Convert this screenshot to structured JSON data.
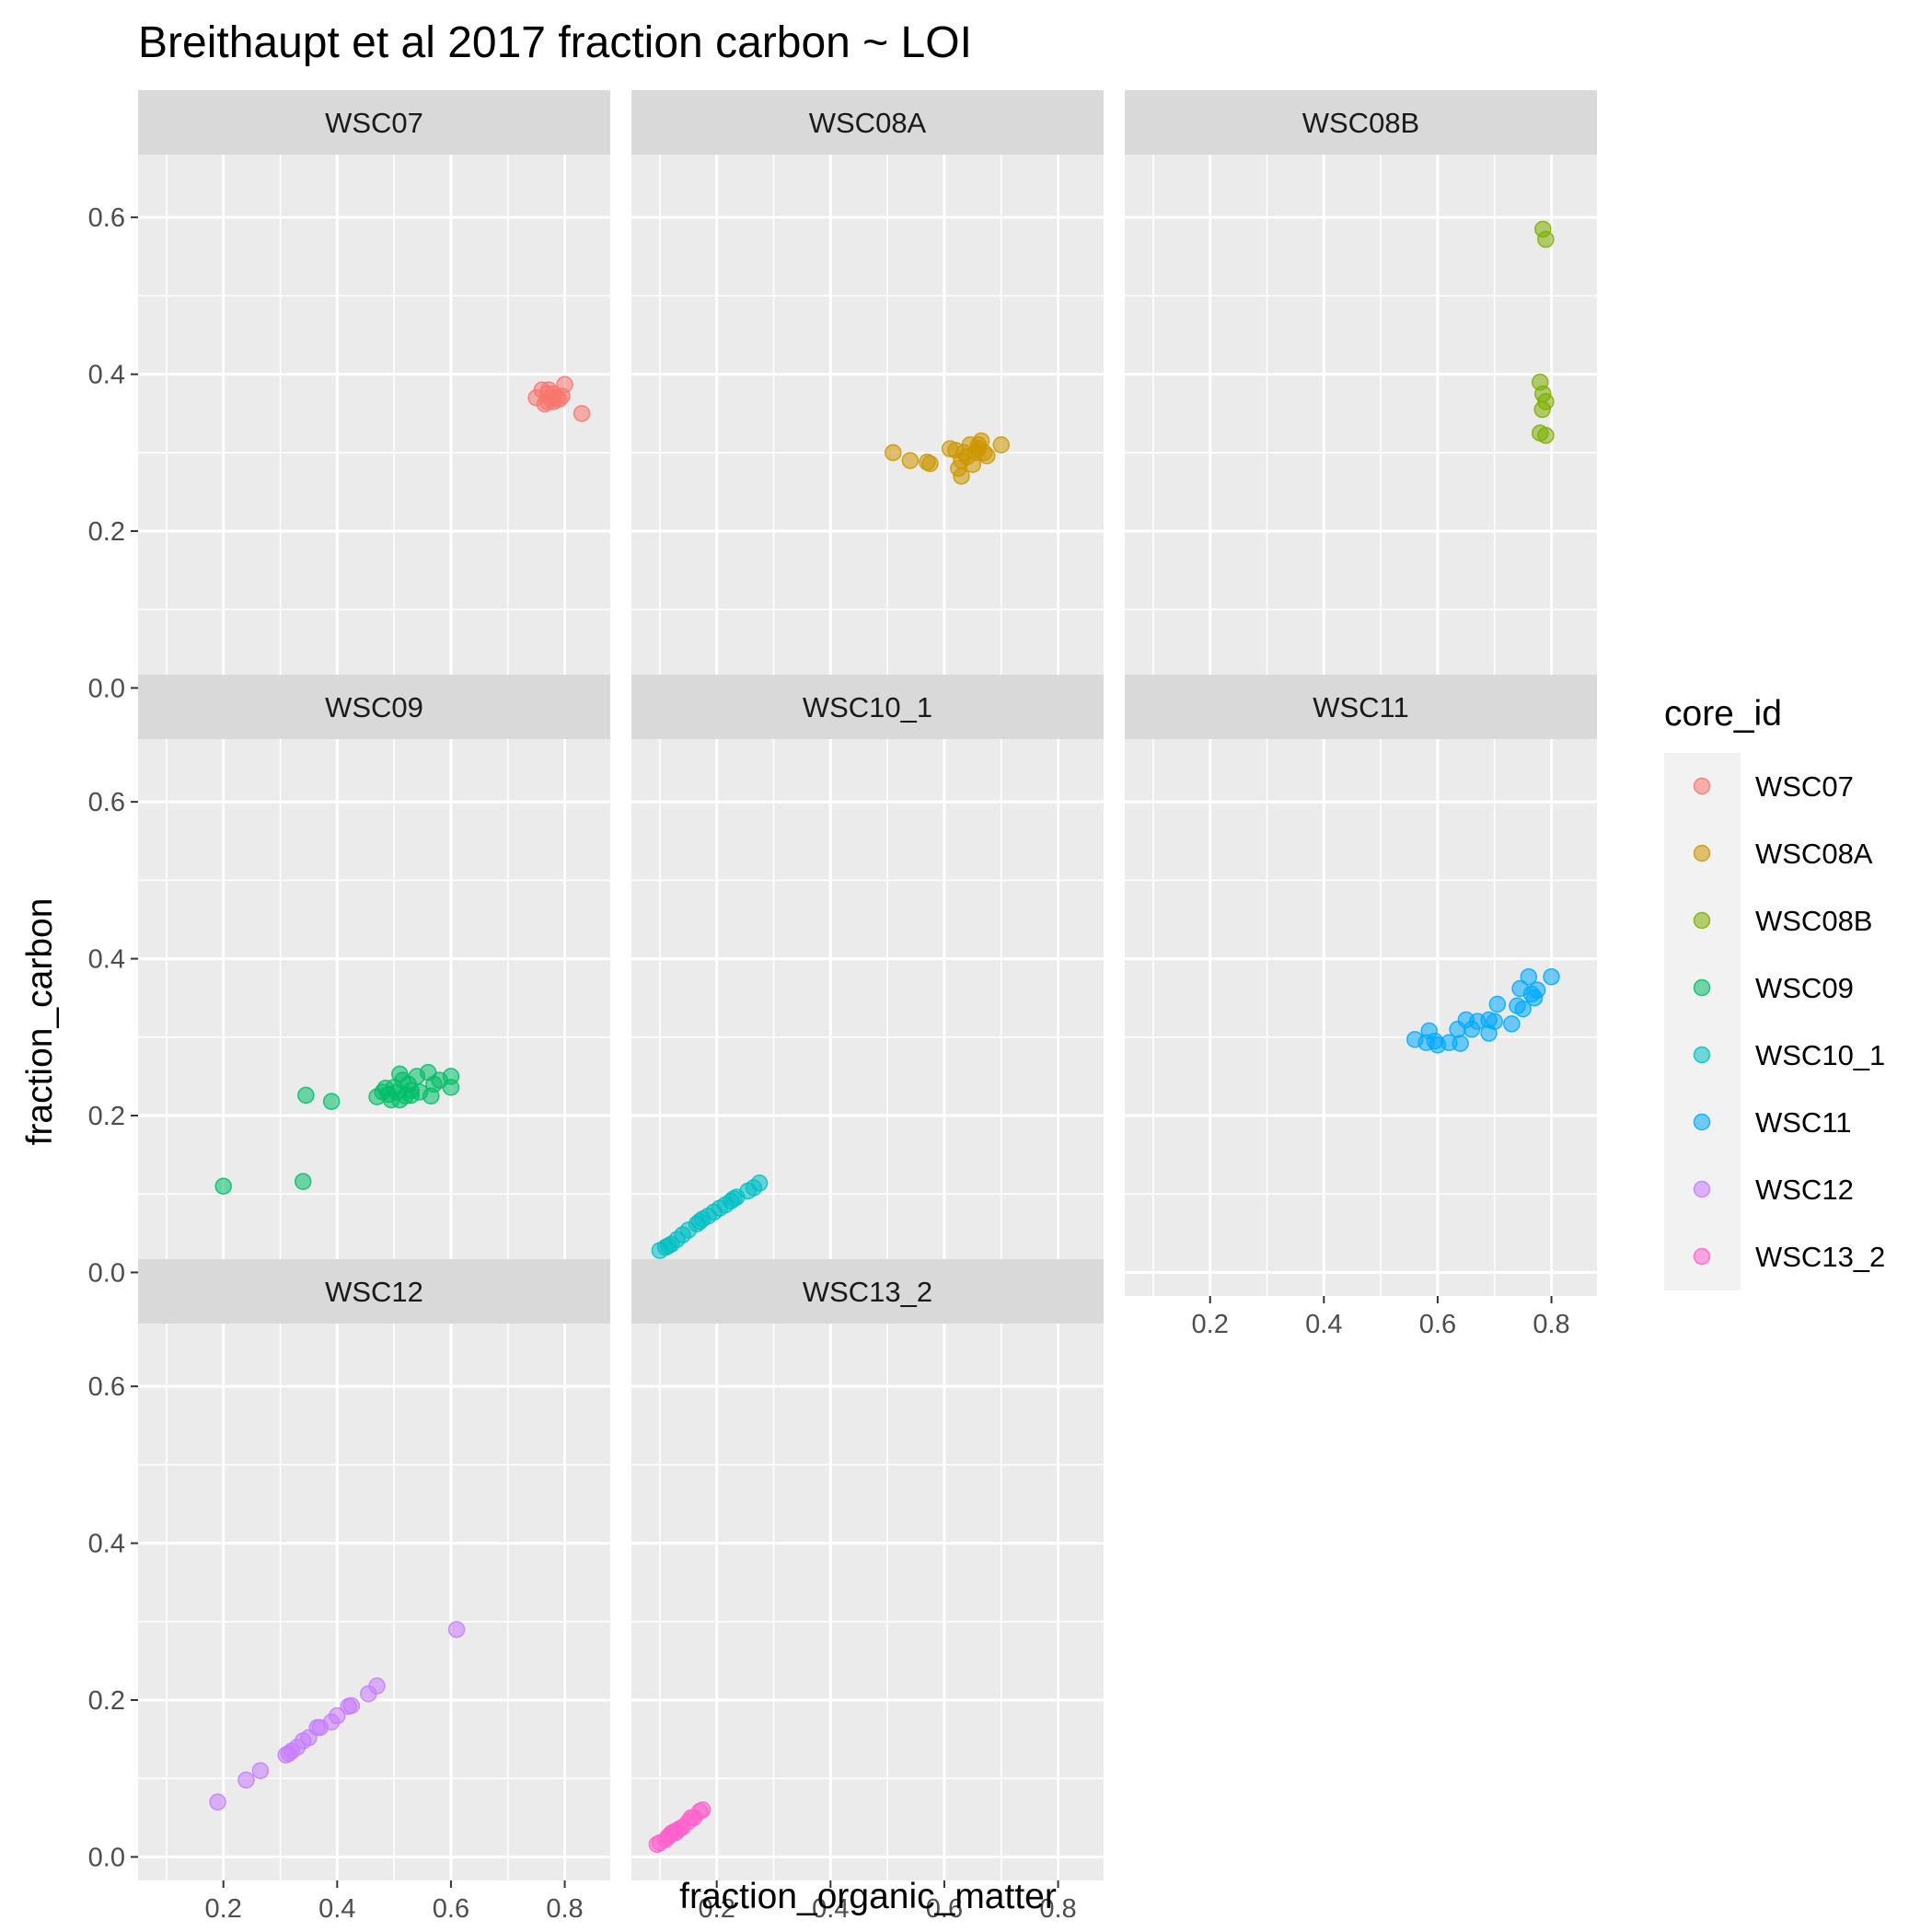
{
  "chart_data": {
    "type": "scatter",
    "title": "Breithaupt et al 2017 fraction carbon ~ LOI",
    "xlabel": "fraction_organic_matter",
    "ylabel": "fraction_carbon",
    "xlim": [
      0.05,
      0.88
    ],
    "ylim": [
      -0.03,
      0.68
    ],
    "x_ticks": [
      {
        "value": 0.2,
        "label": "0.2"
      },
      {
        "value": 0.4,
        "label": "0.4"
      },
      {
        "value": 0.6,
        "label": "0.6"
      },
      {
        "value": 0.8,
        "label": "0.8"
      }
    ],
    "y_ticks": [
      {
        "value": 0.0,
        "label": "0.0"
      },
      {
        "value": 0.2,
        "label": "0.2"
      },
      {
        "value": 0.4,
        "label": "0.4"
      },
      {
        "value": 0.6,
        "label": "0.6"
      }
    ],
    "grid": true,
    "facets": "wrap 3 columns by core_id",
    "legend": {
      "title": "core_id",
      "position": "right"
    },
    "series": [
      {
        "name": "WSC07",
        "color": "#F8766D",
        "points": [
          [
            0.75,
            0.37
          ],
          [
            0.76,
            0.38
          ],
          [
            0.77,
            0.365
          ],
          [
            0.77,
            0.375
          ],
          [
            0.775,
            0.37
          ],
          [
            0.78,
            0.365
          ],
          [
            0.78,
            0.375
          ],
          [
            0.785,
            0.37
          ],
          [
            0.79,
            0.368
          ],
          [
            0.795,
            0.372
          ],
          [
            0.8,
            0.387
          ],
          [
            0.83,
            0.35
          ],
          [
            0.765,
            0.362
          ],
          [
            0.772,
            0.38
          ]
        ]
      },
      {
        "name": "WSC08A",
        "color": "#CD9600",
        "points": [
          [
            0.51,
            0.3
          ],
          [
            0.54,
            0.29
          ],
          [
            0.57,
            0.288
          ],
          [
            0.575,
            0.286
          ],
          [
            0.61,
            0.305
          ],
          [
            0.62,
            0.303
          ],
          [
            0.625,
            0.28
          ],
          [
            0.63,
            0.27
          ],
          [
            0.635,
            0.3
          ],
          [
            0.64,
            0.295
          ],
          [
            0.645,
            0.31
          ],
          [
            0.65,
            0.285
          ],
          [
            0.655,
            0.3
          ],
          [
            0.66,
            0.31
          ],
          [
            0.665,
            0.315
          ],
          [
            0.67,
            0.3
          ],
          [
            0.675,
            0.296
          ],
          [
            0.7,
            0.31
          ],
          [
            0.63,
            0.29
          ],
          [
            0.66,
            0.305
          ]
        ]
      },
      {
        "name": "WSC08B",
        "color": "#7CAE00",
        "points": [
          [
            0.785,
            0.585
          ],
          [
            0.79,
            0.572
          ],
          [
            0.78,
            0.39
          ],
          [
            0.785,
            0.375
          ],
          [
            0.79,
            0.365
          ],
          [
            0.784,
            0.355
          ],
          [
            0.78,
            0.325
          ],
          [
            0.79,
            0.322
          ]
        ]
      },
      {
        "name": "WSC09",
        "color": "#00BE67",
        "points": [
          [
            0.2,
            0.11
          ],
          [
            0.34,
            0.116
          ],
          [
            0.345,
            0.226
          ],
          [
            0.39,
            0.218
          ],
          [
            0.47,
            0.224
          ],
          [
            0.48,
            0.23
          ],
          [
            0.485,
            0.235
          ],
          [
            0.49,
            0.227
          ],
          [
            0.495,
            0.22
          ],
          [
            0.5,
            0.236
          ],
          [
            0.505,
            0.23
          ],
          [
            0.51,
            0.253
          ],
          [
            0.515,
            0.245
          ],
          [
            0.52,
            0.225
          ],
          [
            0.525,
            0.24
          ],
          [
            0.53,
            0.232
          ],
          [
            0.54,
            0.25
          ],
          [
            0.545,
            0.23
          ],
          [
            0.56,
            0.255
          ],
          [
            0.565,
            0.225
          ],
          [
            0.57,
            0.24
          ],
          [
            0.58,
            0.245
          ],
          [
            0.6,
            0.25
          ],
          [
            0.6,
            0.236
          ],
          [
            0.51,
            0.22
          ],
          [
            0.53,
            0.226
          ]
        ]
      },
      {
        "name": "WSC10_1",
        "color": "#00BFC4",
        "points": [
          [
            0.1,
            0.028
          ],
          [
            0.11,
            0.032
          ],
          [
            0.12,
            0.036
          ],
          [
            0.13,
            0.042
          ],
          [
            0.14,
            0.048
          ],
          [
            0.15,
            0.054
          ],
          [
            0.165,
            0.062
          ],
          [
            0.175,
            0.068
          ],
          [
            0.185,
            0.072
          ],
          [
            0.195,
            0.077
          ],
          [
            0.205,
            0.082
          ],
          [
            0.215,
            0.086
          ],
          [
            0.225,
            0.091
          ],
          [
            0.235,
            0.096
          ],
          [
            0.255,
            0.104
          ],
          [
            0.265,
            0.108
          ],
          [
            0.275,
            0.114
          ],
          [
            0.17,
            0.065
          ],
          [
            0.23,
            0.094
          ],
          [
            0.115,
            0.034
          ]
        ]
      },
      {
        "name": "WSC11",
        "color": "#00A9FF",
        "points": [
          [
            0.56,
            0.297
          ],
          [
            0.58,
            0.293
          ],
          [
            0.585,
            0.308
          ],
          [
            0.595,
            0.295
          ],
          [
            0.6,
            0.29
          ],
          [
            0.62,
            0.293
          ],
          [
            0.64,
            0.292
          ],
          [
            0.635,
            0.31
          ],
          [
            0.65,
            0.322
          ],
          [
            0.66,
            0.31
          ],
          [
            0.67,
            0.32
          ],
          [
            0.69,
            0.305
          ],
          [
            0.69,
            0.322
          ],
          [
            0.705,
            0.342
          ],
          [
            0.7,
            0.32
          ],
          [
            0.73,
            0.317
          ],
          [
            0.74,
            0.34
          ],
          [
            0.745,
            0.362
          ],
          [
            0.75,
            0.336
          ],
          [
            0.76,
            0.377
          ],
          [
            0.765,
            0.355
          ],
          [
            0.775,
            0.36
          ],
          [
            0.77,
            0.35
          ],
          [
            0.8,
            0.377
          ]
        ]
      },
      {
        "name": "WSC12",
        "color": "#C77CFF",
        "points": [
          [
            0.19,
            0.07
          ],
          [
            0.24,
            0.098
          ],
          [
            0.265,
            0.11
          ],
          [
            0.31,
            0.13
          ],
          [
            0.32,
            0.135
          ],
          [
            0.33,
            0.14
          ],
          [
            0.34,
            0.148
          ],
          [
            0.35,
            0.152
          ],
          [
            0.365,
            0.165
          ],
          [
            0.37,
            0.165
          ],
          [
            0.39,
            0.172
          ],
          [
            0.4,
            0.18
          ],
          [
            0.42,
            0.192
          ],
          [
            0.425,
            0.193
          ],
          [
            0.455,
            0.208
          ],
          [
            0.47,
            0.218
          ],
          [
            0.61,
            0.29
          ],
          [
            0.315,
            0.132
          ]
        ]
      },
      {
        "name": "WSC13_2",
        "color": "#FF61CC",
        "points": [
          [
            0.095,
            0.016
          ],
          [
            0.1,
            0.018
          ],
          [
            0.11,
            0.022
          ],
          [
            0.115,
            0.026
          ],
          [
            0.12,
            0.03
          ],
          [
            0.125,
            0.032
          ],
          [
            0.13,
            0.034
          ],
          [
            0.135,
            0.036
          ],
          [
            0.14,
            0.038
          ],
          [
            0.15,
            0.045
          ],
          [
            0.155,
            0.05
          ],
          [
            0.16,
            0.05
          ],
          [
            0.17,
            0.058
          ],
          [
            0.175,
            0.06
          ],
          [
            0.118,
            0.028
          ],
          [
            0.128,
            0.031
          ]
        ]
      }
    ]
  }
}
